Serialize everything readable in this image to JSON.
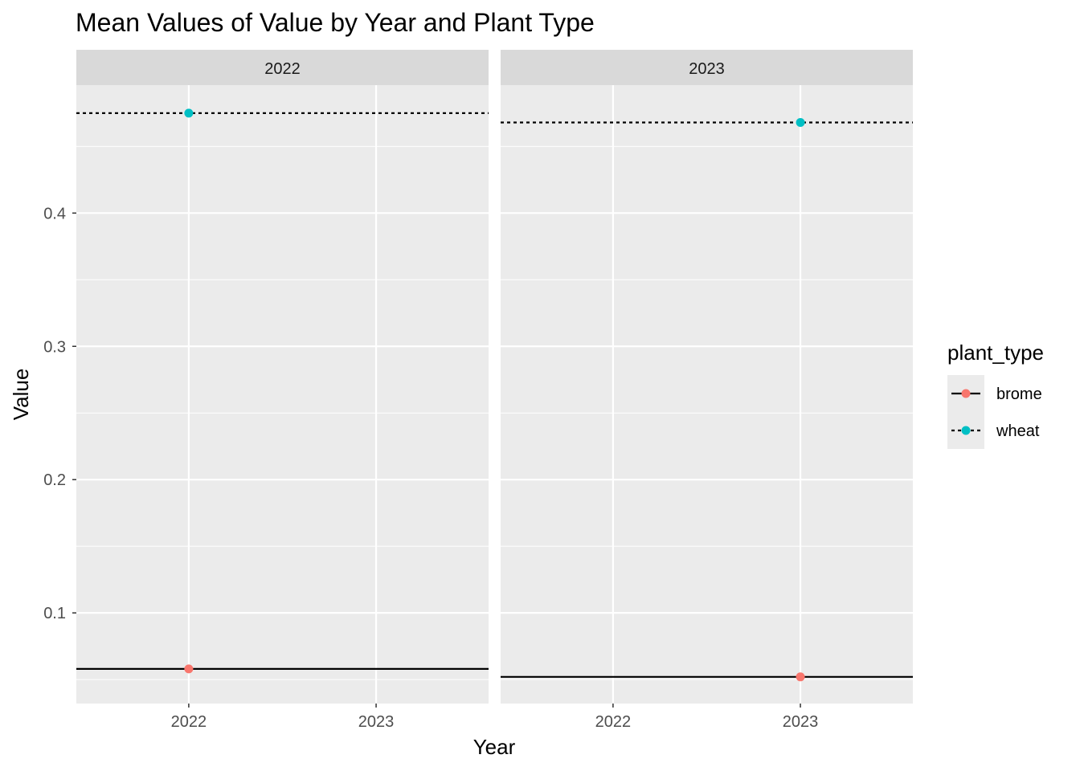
{
  "chart_data": {
    "type": "line",
    "title": "Mean Values of Value by Year and Plant Type",
    "xlabel": "Year",
    "ylabel": "Value",
    "x_ticks": [
      "2022",
      "2023"
    ],
    "y_ticks": [
      0.1,
      0.2,
      0.3,
      0.4
    ],
    "y_tick_labels": [
      "0.1",
      "0.2",
      "0.3",
      "0.4"
    ],
    "ylim": [
      0.032,
      0.496
    ],
    "grid": true,
    "facets": [
      {
        "label": "2022",
        "series": [
          {
            "name": "brome",
            "x": "2022",
            "y": 0.058
          },
          {
            "name": "wheat",
            "x": "2022",
            "y": 0.475
          }
        ]
      },
      {
        "label": "2023",
        "series": [
          {
            "name": "brome",
            "x": "2023",
            "y": 0.052
          },
          {
            "name": "wheat",
            "x": "2023",
            "y": 0.468
          }
        ]
      }
    ],
    "legend": {
      "title": "plant_type",
      "position": "right",
      "entries": [
        {
          "name": "brome",
          "color": "#F8766D",
          "linetype": "solid"
        },
        {
          "name": "wheat",
          "color": "#00BFC4",
          "linetype": "dotted"
        }
      ]
    }
  }
}
